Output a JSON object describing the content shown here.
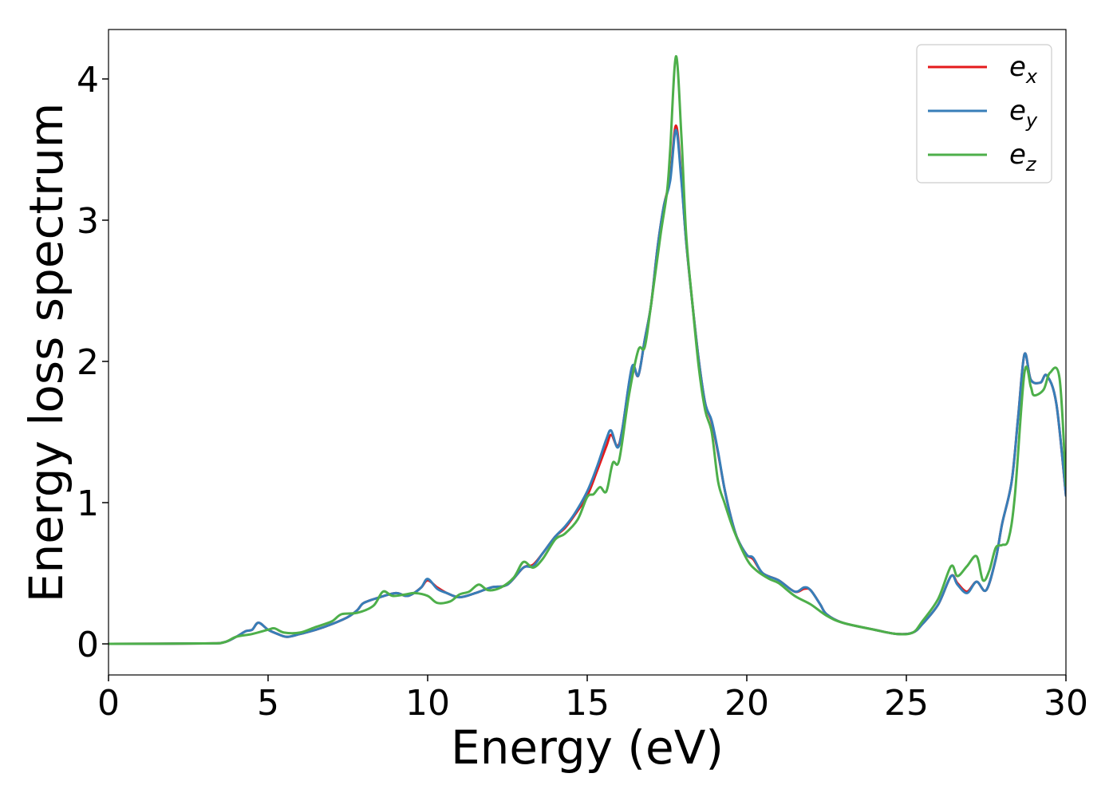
{
  "chart_data": {
    "type": "line",
    "title": "",
    "xlabel": "Energy (eV)",
    "ylabel": "Energy loss spectrum",
    "xlim": [
      0,
      30
    ],
    "ylim": [
      -0.22,
      4.35
    ],
    "grid": false,
    "legend_position": "top-right",
    "x_ticks": [
      {
        "value": 0,
        "label": "0"
      },
      {
        "value": 5,
        "label": "5"
      },
      {
        "value": 10,
        "label": "10"
      },
      {
        "value": 15,
        "label": "15"
      },
      {
        "value": 20,
        "label": "20"
      },
      {
        "value": 25,
        "label": "25"
      },
      {
        "value": 30,
        "label": "30"
      }
    ],
    "y_ticks": [
      {
        "value": 0,
        "label": "0"
      },
      {
        "value": 1,
        "label": "1"
      },
      {
        "value": 2,
        "label": "2"
      },
      {
        "value": 3,
        "label": "3"
      },
      {
        "value": 4,
        "label": "4"
      }
    ],
    "series": [
      {
        "name": "e_x",
        "legend_base": "e",
        "legend_sub": "x",
        "color": "#e41a1c",
        "points": [
          [
            0,
            0
          ],
          [
            3,
            0.003
          ],
          [
            3.6,
            0.01
          ],
          [
            4.0,
            0.05
          ],
          [
            4.3,
            0.09
          ],
          [
            4.5,
            0.1
          ],
          [
            4.7,
            0.15
          ],
          [
            5.0,
            0.1
          ],
          [
            5.3,
            0.07
          ],
          [
            5.6,
            0.05
          ],
          [
            6.0,
            0.07
          ],
          [
            6.5,
            0.1
          ],
          [
            7.0,
            0.14
          ],
          [
            7.5,
            0.19
          ],
          [
            7.8,
            0.24
          ],
          [
            8.0,
            0.29
          ],
          [
            8.5,
            0.33
          ],
          [
            9.0,
            0.36
          ],
          [
            9.3,
            0.34
          ],
          [
            9.5,
            0.35
          ],
          [
            9.8,
            0.4
          ],
          [
            10.0,
            0.45
          ],
          [
            10.3,
            0.4
          ],
          [
            10.6,
            0.36
          ],
          [
            11.0,
            0.33
          ],
          [
            11.5,
            0.36
          ],
          [
            12.0,
            0.4
          ],
          [
            12.5,
            0.42
          ],
          [
            13.0,
            0.54
          ],
          [
            13.3,
            0.56
          ],
          [
            13.6,
            0.64
          ],
          [
            14.0,
            0.76
          ],
          [
            14.3,
            0.82
          ],
          [
            14.6,
            0.91
          ],
          [
            15.0,
            1.05
          ],
          [
            15.3,
            1.22
          ],
          [
            15.6,
            1.4
          ],
          [
            15.75,
            1.48
          ],
          [
            15.95,
            1.4
          ],
          [
            16.1,
            1.52
          ],
          [
            16.4,
            1.95
          ],
          [
            16.6,
            1.9
          ],
          [
            16.8,
            2.15
          ],
          [
            17.0,
            2.4
          ],
          [
            17.2,
            2.8
          ],
          [
            17.4,
            3.1
          ],
          [
            17.6,
            3.3
          ],
          [
            17.78,
            3.67
          ],
          [
            17.95,
            3.3
          ],
          [
            18.1,
            2.85
          ],
          [
            18.3,
            2.4
          ],
          [
            18.5,
            2.0
          ],
          [
            18.7,
            1.7
          ],
          [
            18.9,
            1.57
          ],
          [
            19.1,
            1.35
          ],
          [
            19.3,
            1.1
          ],
          [
            19.5,
            0.9
          ],
          [
            19.7,
            0.75
          ],
          [
            20.0,
            0.63
          ],
          [
            20.2,
            0.6
          ],
          [
            20.5,
            0.5
          ],
          [
            21.0,
            0.45
          ],
          [
            21.5,
            0.37
          ],
          [
            21.8,
            0.39
          ],
          [
            22.0,
            0.38
          ],
          [
            22.3,
            0.28
          ],
          [
            22.5,
            0.21
          ],
          [
            23.0,
            0.15
          ],
          [
            24.0,
            0.1
          ],
          [
            24.7,
            0.07
          ],
          [
            25.2,
            0.08
          ],
          [
            25.5,
            0.14
          ],
          [
            26.0,
            0.28
          ],
          [
            26.4,
            0.48
          ],
          [
            26.6,
            0.43
          ],
          [
            26.9,
            0.37
          ],
          [
            27.2,
            0.44
          ],
          [
            27.5,
            0.38
          ],
          [
            27.8,
            0.6
          ],
          [
            28.0,
            0.85
          ],
          [
            28.3,
            1.15
          ],
          [
            28.5,
            1.6
          ],
          [
            28.7,
            2.05
          ],
          [
            28.9,
            1.87
          ],
          [
            29.2,
            1.85
          ],
          [
            29.4,
            1.9
          ],
          [
            29.7,
            1.7
          ],
          [
            30.0,
            1.05
          ]
        ]
      },
      {
        "name": "e_y",
        "legend_base": "e",
        "legend_sub": "y",
        "color": "#377eb8",
        "points": [
          [
            0,
            0
          ],
          [
            3,
            0.003
          ],
          [
            3.6,
            0.01
          ],
          [
            4.0,
            0.05
          ],
          [
            4.3,
            0.09
          ],
          [
            4.5,
            0.1
          ],
          [
            4.7,
            0.15
          ],
          [
            5.0,
            0.1
          ],
          [
            5.3,
            0.07
          ],
          [
            5.6,
            0.05
          ],
          [
            6.0,
            0.07
          ],
          [
            6.5,
            0.1
          ],
          [
            7.0,
            0.14
          ],
          [
            7.5,
            0.19
          ],
          [
            7.8,
            0.24
          ],
          [
            8.0,
            0.29
          ],
          [
            8.5,
            0.33
          ],
          [
            9.0,
            0.36
          ],
          [
            9.3,
            0.34
          ],
          [
            9.5,
            0.35
          ],
          [
            9.8,
            0.4
          ],
          [
            10.0,
            0.46
          ],
          [
            10.3,
            0.39
          ],
          [
            10.6,
            0.36
          ],
          [
            11.0,
            0.33
          ],
          [
            11.5,
            0.36
          ],
          [
            12.0,
            0.4
          ],
          [
            12.5,
            0.42
          ],
          [
            13.0,
            0.54
          ],
          [
            13.3,
            0.55
          ],
          [
            13.6,
            0.64
          ],
          [
            14.0,
            0.76
          ],
          [
            14.3,
            0.83
          ],
          [
            14.6,
            0.92
          ],
          [
            15.0,
            1.08
          ],
          [
            15.3,
            1.25
          ],
          [
            15.6,
            1.45
          ],
          [
            15.75,
            1.51
          ],
          [
            15.95,
            1.39
          ],
          [
            16.1,
            1.52
          ],
          [
            16.4,
            1.96
          ],
          [
            16.6,
            1.9
          ],
          [
            16.8,
            2.15
          ],
          [
            17.0,
            2.4
          ],
          [
            17.2,
            2.8
          ],
          [
            17.4,
            3.1
          ],
          [
            17.6,
            3.28
          ],
          [
            17.78,
            3.64
          ],
          [
            17.95,
            3.28
          ],
          [
            18.1,
            2.85
          ],
          [
            18.3,
            2.4
          ],
          [
            18.5,
            2.0
          ],
          [
            18.7,
            1.7
          ],
          [
            18.9,
            1.58
          ],
          [
            19.1,
            1.36
          ],
          [
            19.3,
            1.1
          ],
          [
            19.5,
            0.9
          ],
          [
            19.7,
            0.75
          ],
          [
            20.0,
            0.63
          ],
          [
            20.2,
            0.61
          ],
          [
            20.5,
            0.5
          ],
          [
            21.0,
            0.45
          ],
          [
            21.5,
            0.37
          ],
          [
            21.8,
            0.4
          ],
          [
            22.0,
            0.38
          ],
          [
            22.3,
            0.28
          ],
          [
            22.5,
            0.21
          ],
          [
            23.0,
            0.15
          ],
          [
            24.0,
            0.1
          ],
          [
            24.7,
            0.07
          ],
          [
            25.2,
            0.08
          ],
          [
            25.5,
            0.14
          ],
          [
            26.0,
            0.28
          ],
          [
            26.4,
            0.48
          ],
          [
            26.6,
            0.42
          ],
          [
            26.9,
            0.36
          ],
          [
            27.2,
            0.44
          ],
          [
            27.5,
            0.38
          ],
          [
            27.8,
            0.6
          ],
          [
            28.0,
            0.85
          ],
          [
            28.3,
            1.15
          ],
          [
            28.5,
            1.6
          ],
          [
            28.7,
            2.05
          ],
          [
            28.9,
            1.87
          ],
          [
            29.2,
            1.85
          ],
          [
            29.4,
            1.9
          ],
          [
            29.7,
            1.7
          ],
          [
            30.0,
            1.05
          ]
        ]
      },
      {
        "name": "e_z",
        "legend_base": "e",
        "legend_sub": "z",
        "color": "#4daf4a",
        "points": [
          [
            0,
            0
          ],
          [
            3,
            0.003
          ],
          [
            3.6,
            0.01
          ],
          [
            4.0,
            0.05
          ],
          [
            4.5,
            0.07
          ],
          [
            5.0,
            0.1
          ],
          [
            5.2,
            0.11
          ],
          [
            5.5,
            0.08
          ],
          [
            6.0,
            0.08
          ],
          [
            6.5,
            0.12
          ],
          [
            7.0,
            0.16
          ],
          [
            7.3,
            0.21
          ],
          [
            7.8,
            0.22
          ],
          [
            8.3,
            0.27
          ],
          [
            8.6,
            0.37
          ],
          [
            8.9,
            0.34
          ],
          [
            9.3,
            0.35
          ],
          [
            9.6,
            0.36
          ],
          [
            10.0,
            0.34
          ],
          [
            10.3,
            0.29
          ],
          [
            10.7,
            0.3
          ],
          [
            11.0,
            0.35
          ],
          [
            11.3,
            0.37
          ],
          [
            11.6,
            0.42
          ],
          [
            11.9,
            0.38
          ],
          [
            12.3,
            0.4
          ],
          [
            12.7,
            0.47
          ],
          [
            13.0,
            0.58
          ],
          [
            13.3,
            0.54
          ],
          [
            13.6,
            0.6
          ],
          [
            14.0,
            0.74
          ],
          [
            14.3,
            0.78
          ],
          [
            14.7,
            0.88
          ],
          [
            15.0,
            1.04
          ],
          [
            15.2,
            1.06
          ],
          [
            15.4,
            1.11
          ],
          [
            15.6,
            1.08
          ],
          [
            15.8,
            1.28
          ],
          [
            16.0,
            1.3
          ],
          [
            16.3,
            1.75
          ],
          [
            16.6,
            2.08
          ],
          [
            16.8,
            2.1
          ],
          [
            17.0,
            2.4
          ],
          [
            17.3,
            2.9
          ],
          [
            17.5,
            3.2
          ],
          [
            17.6,
            3.5
          ],
          [
            17.78,
            4.16
          ],
          [
            17.95,
            3.6
          ],
          [
            18.1,
            2.9
          ],
          [
            18.3,
            2.4
          ],
          [
            18.5,
            1.95
          ],
          [
            18.7,
            1.65
          ],
          [
            18.9,
            1.5
          ],
          [
            19.1,
            1.15
          ],
          [
            19.3,
            1.0
          ],
          [
            19.6,
            0.8
          ],
          [
            20.0,
            0.6
          ],
          [
            20.3,
            0.52
          ],
          [
            20.7,
            0.46
          ],
          [
            21.0,
            0.43
          ],
          [
            21.5,
            0.34
          ],
          [
            22.0,
            0.28
          ],
          [
            22.5,
            0.2
          ],
          [
            23.0,
            0.15
          ],
          [
            24.0,
            0.1
          ],
          [
            24.7,
            0.07
          ],
          [
            25.2,
            0.08
          ],
          [
            25.5,
            0.16
          ],
          [
            26.0,
            0.32
          ],
          [
            26.4,
            0.55
          ],
          [
            26.6,
            0.48
          ],
          [
            26.9,
            0.55
          ],
          [
            27.2,
            0.62
          ],
          [
            27.4,
            0.45
          ],
          [
            27.6,
            0.52
          ],
          [
            27.8,
            0.68
          ],
          [
            28.0,
            0.7
          ],
          [
            28.2,
            0.74
          ],
          [
            28.4,
            1.05
          ],
          [
            28.7,
            1.92
          ],
          [
            28.9,
            1.82
          ],
          [
            29.0,
            1.76
          ],
          [
            29.3,
            1.8
          ],
          [
            29.5,
            1.92
          ],
          [
            29.8,
            1.88
          ],
          [
            30.0,
            1.12
          ]
        ]
      }
    ]
  }
}
